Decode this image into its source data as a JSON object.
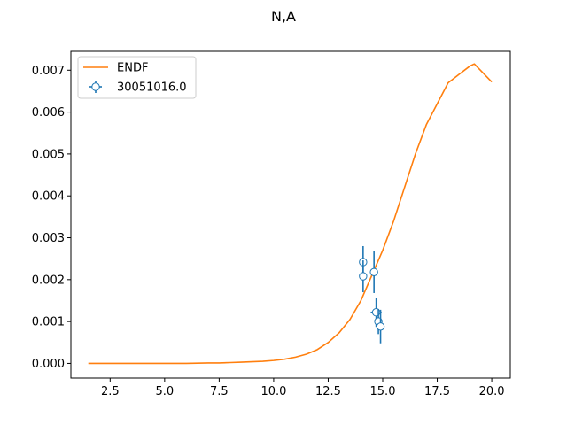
{
  "chart_data": {
    "type": "scatter",
    "title": "N,A",
    "xlabel": "",
    "ylabel": "",
    "xlim": [
      0.7,
      20.85
    ],
    "ylim": [
      -0.00035,
      0.00745
    ],
    "xticks": [
      2.5,
      5.0,
      7.5,
      10.0,
      12.5,
      15.0,
      17.5,
      20.0
    ],
    "xtick_labels": [
      "2.5",
      "5.0",
      "7.5",
      "10.0",
      "12.5",
      "15.0",
      "17.5",
      "20.0"
    ],
    "yticks": [
      0.0,
      0.001,
      0.002,
      0.003,
      0.004,
      0.005,
      0.006,
      0.007
    ],
    "ytick_labels": [
      "0.000",
      "0.001",
      "0.002",
      "0.003",
      "0.004",
      "0.005",
      "0.006",
      "0.007"
    ],
    "grid": false,
    "legend_position": "top-left",
    "legend": [
      {
        "label": "ENDF",
        "kind": "line",
        "color": "#ff7f0e"
      },
      {
        "label": "30051016.0",
        "kind": "errorbar-marker",
        "color": "#1f77b4"
      }
    ],
    "series": [
      {
        "name": "ENDF",
        "kind": "line",
        "color": "#ff7f0e",
        "x": [
          1.5,
          2.0,
          3.0,
          4.0,
          5.0,
          6.0,
          7.0,
          7.5,
          8.0,
          8.5,
          9.0,
          9.5,
          10.0,
          10.5,
          11.0,
          11.5,
          12.0,
          12.5,
          13.0,
          13.5,
          14.0,
          14.5,
          15.0,
          15.5,
          16.0,
          16.5,
          17.0,
          17.5,
          18.0,
          18.5,
          19.0,
          19.2,
          20.0
        ],
        "y": [
          0.0,
          0.0,
          0.0,
          0.0,
          0.0,
          0.0,
          1e-05,
          1e-05,
          2e-05,
          3e-05,
          4e-05,
          5e-05,
          7e-05,
          0.0001,
          0.00015,
          0.00022,
          0.00033,
          0.0005,
          0.00073,
          0.00105,
          0.0015,
          0.0021,
          0.0027,
          0.0034,
          0.0042,
          0.005,
          0.0057,
          0.0062,
          0.0067,
          0.0069,
          0.0071,
          0.00715,
          0.00672
        ]
      },
      {
        "name": "30051016.0",
        "kind": "errorbar",
        "color": "#1f77b4",
        "points": [
          {
            "x": 14.1,
            "y": 0.00242,
            "yerr": 0.00038,
            "xerr": 0.0
          },
          {
            "x": 14.1,
            "y": 0.00208,
            "yerr": 0.00038,
            "xerr": 0.0
          },
          {
            "x": 14.6,
            "y": 0.00218,
            "yerr": 0.0005,
            "xerr": 0.0
          },
          {
            "x": 14.7,
            "y": 0.00122,
            "yerr": 0.00035,
            "xerr": 0.25
          },
          {
            "x": 14.8,
            "y": 0.001,
            "yerr": 0.0003,
            "xerr": 0.0
          },
          {
            "x": 14.9,
            "y": 0.00088,
            "yerr": 0.0004,
            "xerr": 0.0
          }
        ]
      }
    ]
  }
}
